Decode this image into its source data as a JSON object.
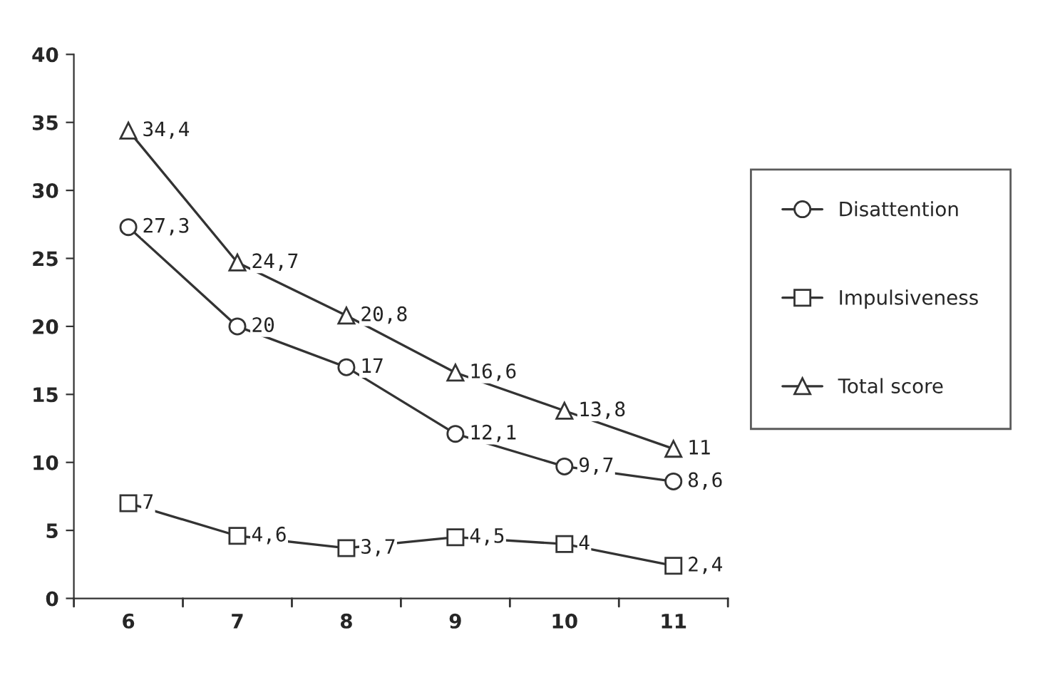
{
  "chart_data": {
    "type": "line",
    "categories": [
      "6",
      "7",
      "8",
      "9",
      "10",
      "11"
    ],
    "series": [
      {
        "name": "Disattention",
        "color": "#333333",
        "marker": "circle",
        "values": [
          27.3,
          20,
          17,
          12.1,
          9.7,
          8.6
        ],
        "value_labels": [
          "27,3",
          "20",
          "17",
          "12,1",
          "9,7",
          "8,6"
        ]
      },
      {
        "name": "Impulsiveness",
        "color": "#333333",
        "marker": "square",
        "values": [
          7,
          4.6,
          3.7,
          4.5,
          4,
          2.4
        ],
        "value_labels": [
          "7",
          "4,6",
          "3,7",
          "4,5",
          "4",
          "2,4"
        ]
      },
      {
        "name": "Total score",
        "color": "#333333",
        "marker": "triangle",
        "values": [
          34.4,
          24.7,
          20.8,
          16.6,
          13.8,
          11
        ],
        "value_labels": [
          "34,4",
          "24,7",
          "20,8",
          "16,6",
          "13,8",
          "11"
        ]
      }
    ],
    "ylim": [
      0,
      40
    ],
    "yticks": [
      0,
      5,
      10,
      15,
      20,
      25,
      30,
      35,
      40
    ],
    "grid": false,
    "legend": "right",
    "line_style": "solid"
  }
}
